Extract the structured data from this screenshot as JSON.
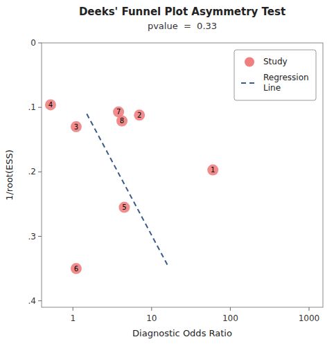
{
  "chart_data": {
    "type": "scatter",
    "title": "Deeks' Funnel Plot Asymmetry Test",
    "subtitle": "pvalue  =  0.33",
    "xlabel": "Diagnostic Odds Ratio",
    "ylabel": "1/root(ESS)",
    "log": "x",
    "grid": false,
    "legend": "upper right",
    "xlim": [
      0.4,
      1500
    ],
    "xticks": [
      1,
      10,
      100,
      1000
    ],
    "ylim": [
      0.41,
      0
    ],
    "yticks": [
      0,
      {
        "value": 0.1,
        "label": ".1"
      },
      {
        "value": 0.2,
        "label": ".2"
      },
      {
        "value": 0.3,
        "label": ".3"
      },
      {
        "value": 0.4,
        "label": ".4"
      }
    ],
    "series": [
      {
        "name": "Study",
        "type": "scatter",
        "marker": "circle",
        "color": "#F08080",
        "labels": [
          "4",
          "3",
          "7",
          "8",
          "2",
          "1",
          "5",
          "6"
        ],
        "x": [
          0.52,
          1.1,
          3.8,
          4.2,
          7.0,
          60.0,
          4.5,
          1.1
        ],
        "values": [
          0.096,
          0.13,
          0.107,
          0.121,
          0.112,
          0.197,
          0.255,
          0.35
        ]
      },
      {
        "name": "Regression\nLine",
        "type": "line",
        "line_style": "dashed",
        "color": "#3A5A8A",
        "x": [
          1.5,
          16.0
        ],
        "values": [
          0.11,
          0.345
        ]
      }
    ]
  }
}
